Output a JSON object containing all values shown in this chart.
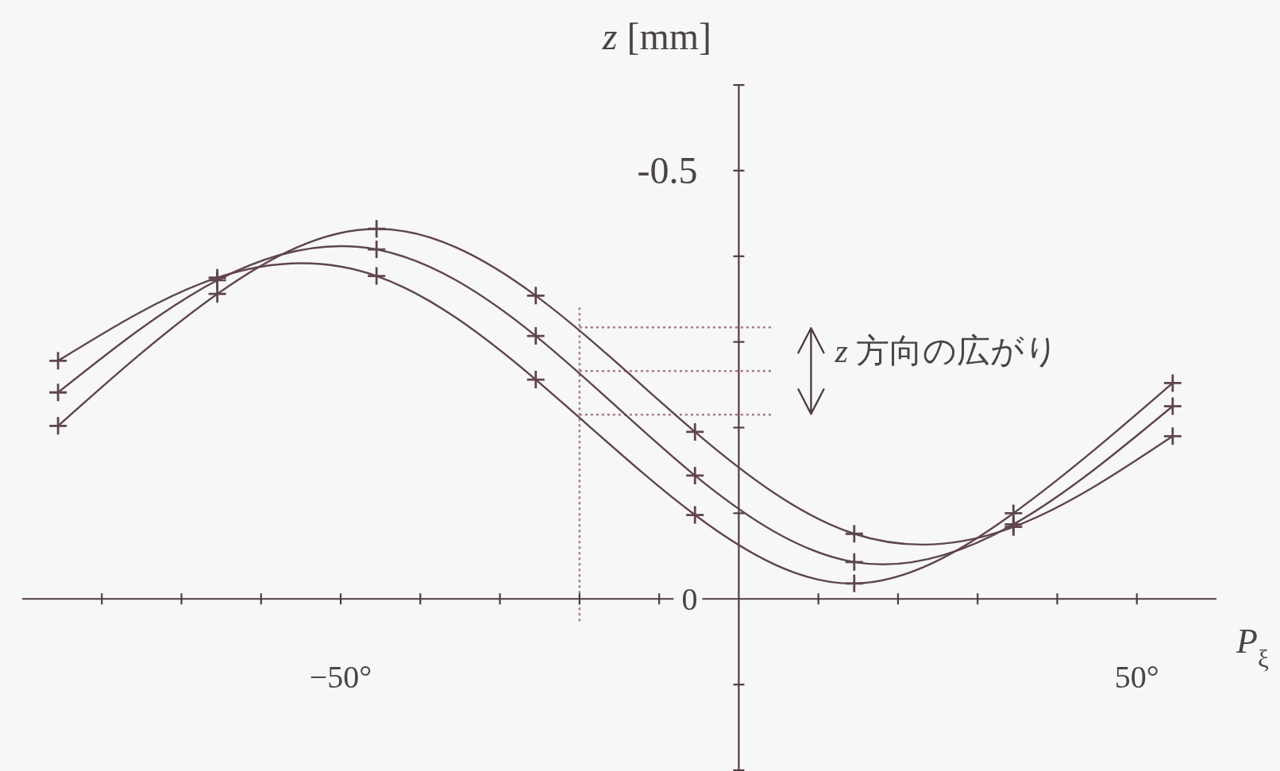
{
  "chart_data": {
    "type": "line",
    "xlabel": "*P*$_{ξ}$",
    "ylabel": "*z* [mm]",
    "x": [
      -85.5,
      -65.5,
      -45.5,
      -25.5,
      -5.5,
      14.5,
      34.5,
      54.5
    ],
    "series": [
      {
        "color": "#5e4550",
        "values": [
          -0.278,
          -0.375,
          -0.377,
          -0.256,
          -0.098,
          -0.018,
          -0.1,
          -0.252
        ]
      },
      {
        "color": "#5e4550",
        "values": [
          -0.241,
          -0.372,
          -0.408,
          -0.307,
          -0.144,
          -0.043,
          -0.087,
          -0.225
        ]
      },
      {
        "color": "#5e4550",
        "values": [
          -0.202,
          -0.356,
          -0.432,
          -0.354,
          -0.195,
          -0.076,
          -0.084,
          -0.19
        ]
      }
    ],
    "xlim": [
      -90,
      60
    ],
    "ylim": [
      0.2,
      -0.6
    ],
    "xticks": [
      {
        "value": -80,
        "label": null
      },
      {
        "value": -70,
        "label": null
      },
      {
        "value": -60,
        "label": null
      },
      {
        "value": -50,
        "label": "−50°"
      },
      {
        "value": -40,
        "label": null
      },
      {
        "value": -30,
        "label": null
      },
      {
        "value": -20,
        "label": null
      },
      {
        "value": -10,
        "label": null
      },
      {
        "value": 10,
        "label": null
      },
      {
        "value": 20,
        "label": null
      },
      {
        "value": 30,
        "label": null
      },
      {
        "value": 40,
        "label": null
      },
      {
        "value": 50,
        "label": "50°"
      }
    ],
    "yticks": [
      {
        "value": 0.2,
        "label": null
      },
      {
        "value": 0.1,
        "label": null
      },
      {
        "value": 0,
        "label": "0"
      },
      {
        "value": -0.1,
        "label": null
      },
      {
        "value": -0.2,
        "label": null
      },
      {
        "value": -0.3,
        "label": null
      },
      {
        "value": -0.4,
        "label": null
      },
      {
        "value": -0.5,
        "label": "-0.5"
      },
      {
        "value": -0.6,
        "label": null
      }
    ],
    "marker": "cross",
    "ref_lines": [
      {
        "axis": "x",
        "value": -20,
        "color": "#a9788c",
        "line_style": "dotted"
      },
      {
        "axis": "y",
        "value": -0.317,
        "color": "#a9788c",
        "line_style": "dotted"
      },
      {
        "axis": "y",
        "value": -0.266,
        "color": "#a9788c",
        "line_style": "dotted"
      },
      {
        "axis": "y",
        "value": -0.215,
        "color": "#a9788c",
        "line_style": "dotted"
      }
    ],
    "annotations": [
      "*z* 方向の広がり"
    ]
  }
}
